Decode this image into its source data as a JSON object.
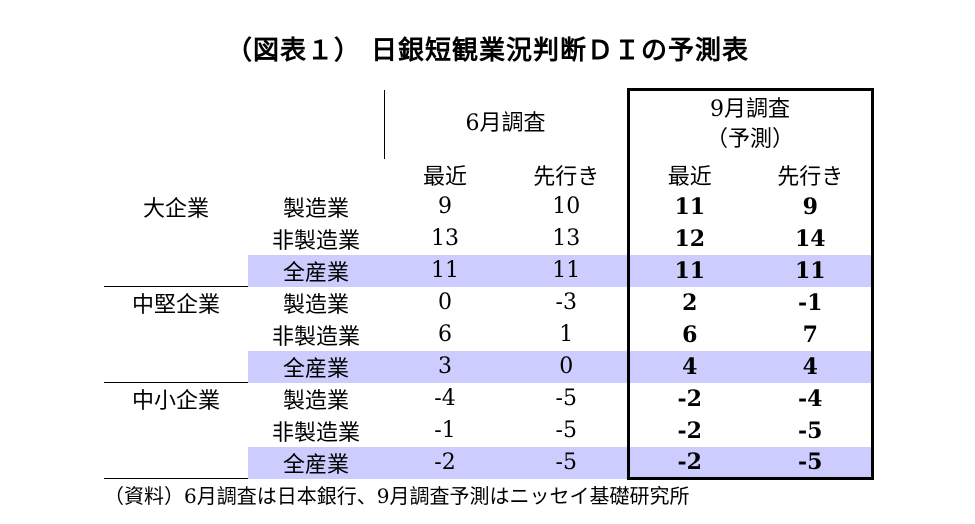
{
  "title": "（図表１） 日銀短観業況判断ＤＩの予測表",
  "header": {
    "group_june": "6月調査",
    "group_sept_line1": "9月調査",
    "group_sept_line2": "（予測）",
    "recent": "最近",
    "ahead": "先行き"
  },
  "groups": [
    {
      "name": "大企業",
      "rows": [
        {
          "sector": "製造業",
          "jun_recent": "9",
          "jun_ahead": "10",
          "sep_recent": "11",
          "sep_ahead": "9"
        },
        {
          "sector": "非製造業",
          "jun_recent": "13",
          "jun_ahead": "13",
          "sep_recent": "12",
          "sep_ahead": "14"
        },
        {
          "sector": "全産業",
          "jun_recent": "11",
          "jun_ahead": "11",
          "sep_recent": "11",
          "sep_ahead": "11"
        }
      ]
    },
    {
      "name": "中堅企業",
      "rows": [
        {
          "sector": "製造業",
          "jun_recent": "0",
          "jun_ahead": "-3",
          "sep_recent": "2",
          "sep_ahead": "-1"
        },
        {
          "sector": "非製造業",
          "jun_recent": "6",
          "jun_ahead": "1",
          "sep_recent": "6",
          "sep_ahead": "7"
        },
        {
          "sector": "全産業",
          "jun_recent": "3",
          "jun_ahead": "0",
          "sep_recent": "4",
          "sep_ahead": "4"
        }
      ]
    },
    {
      "name": "中小企業",
      "rows": [
        {
          "sector": "製造業",
          "jun_recent": "-4",
          "jun_ahead": "-5",
          "sep_recent": "-2",
          "sep_ahead": "-4"
        },
        {
          "sector": "非製造業",
          "jun_recent": "-1",
          "jun_ahead": "-5",
          "sep_recent": "-2",
          "sep_ahead": "-5"
        },
        {
          "sector": "全産業",
          "jun_recent": "-2",
          "jun_ahead": "-5",
          "sep_recent": "-2",
          "sep_ahead": "-5"
        }
      ]
    }
  ],
  "source": "（資料）6月調査は日本銀行、9月調査予測はニッセイ基礎研究所",
  "colors": {
    "highlight_row": "#ccccff"
  }
}
